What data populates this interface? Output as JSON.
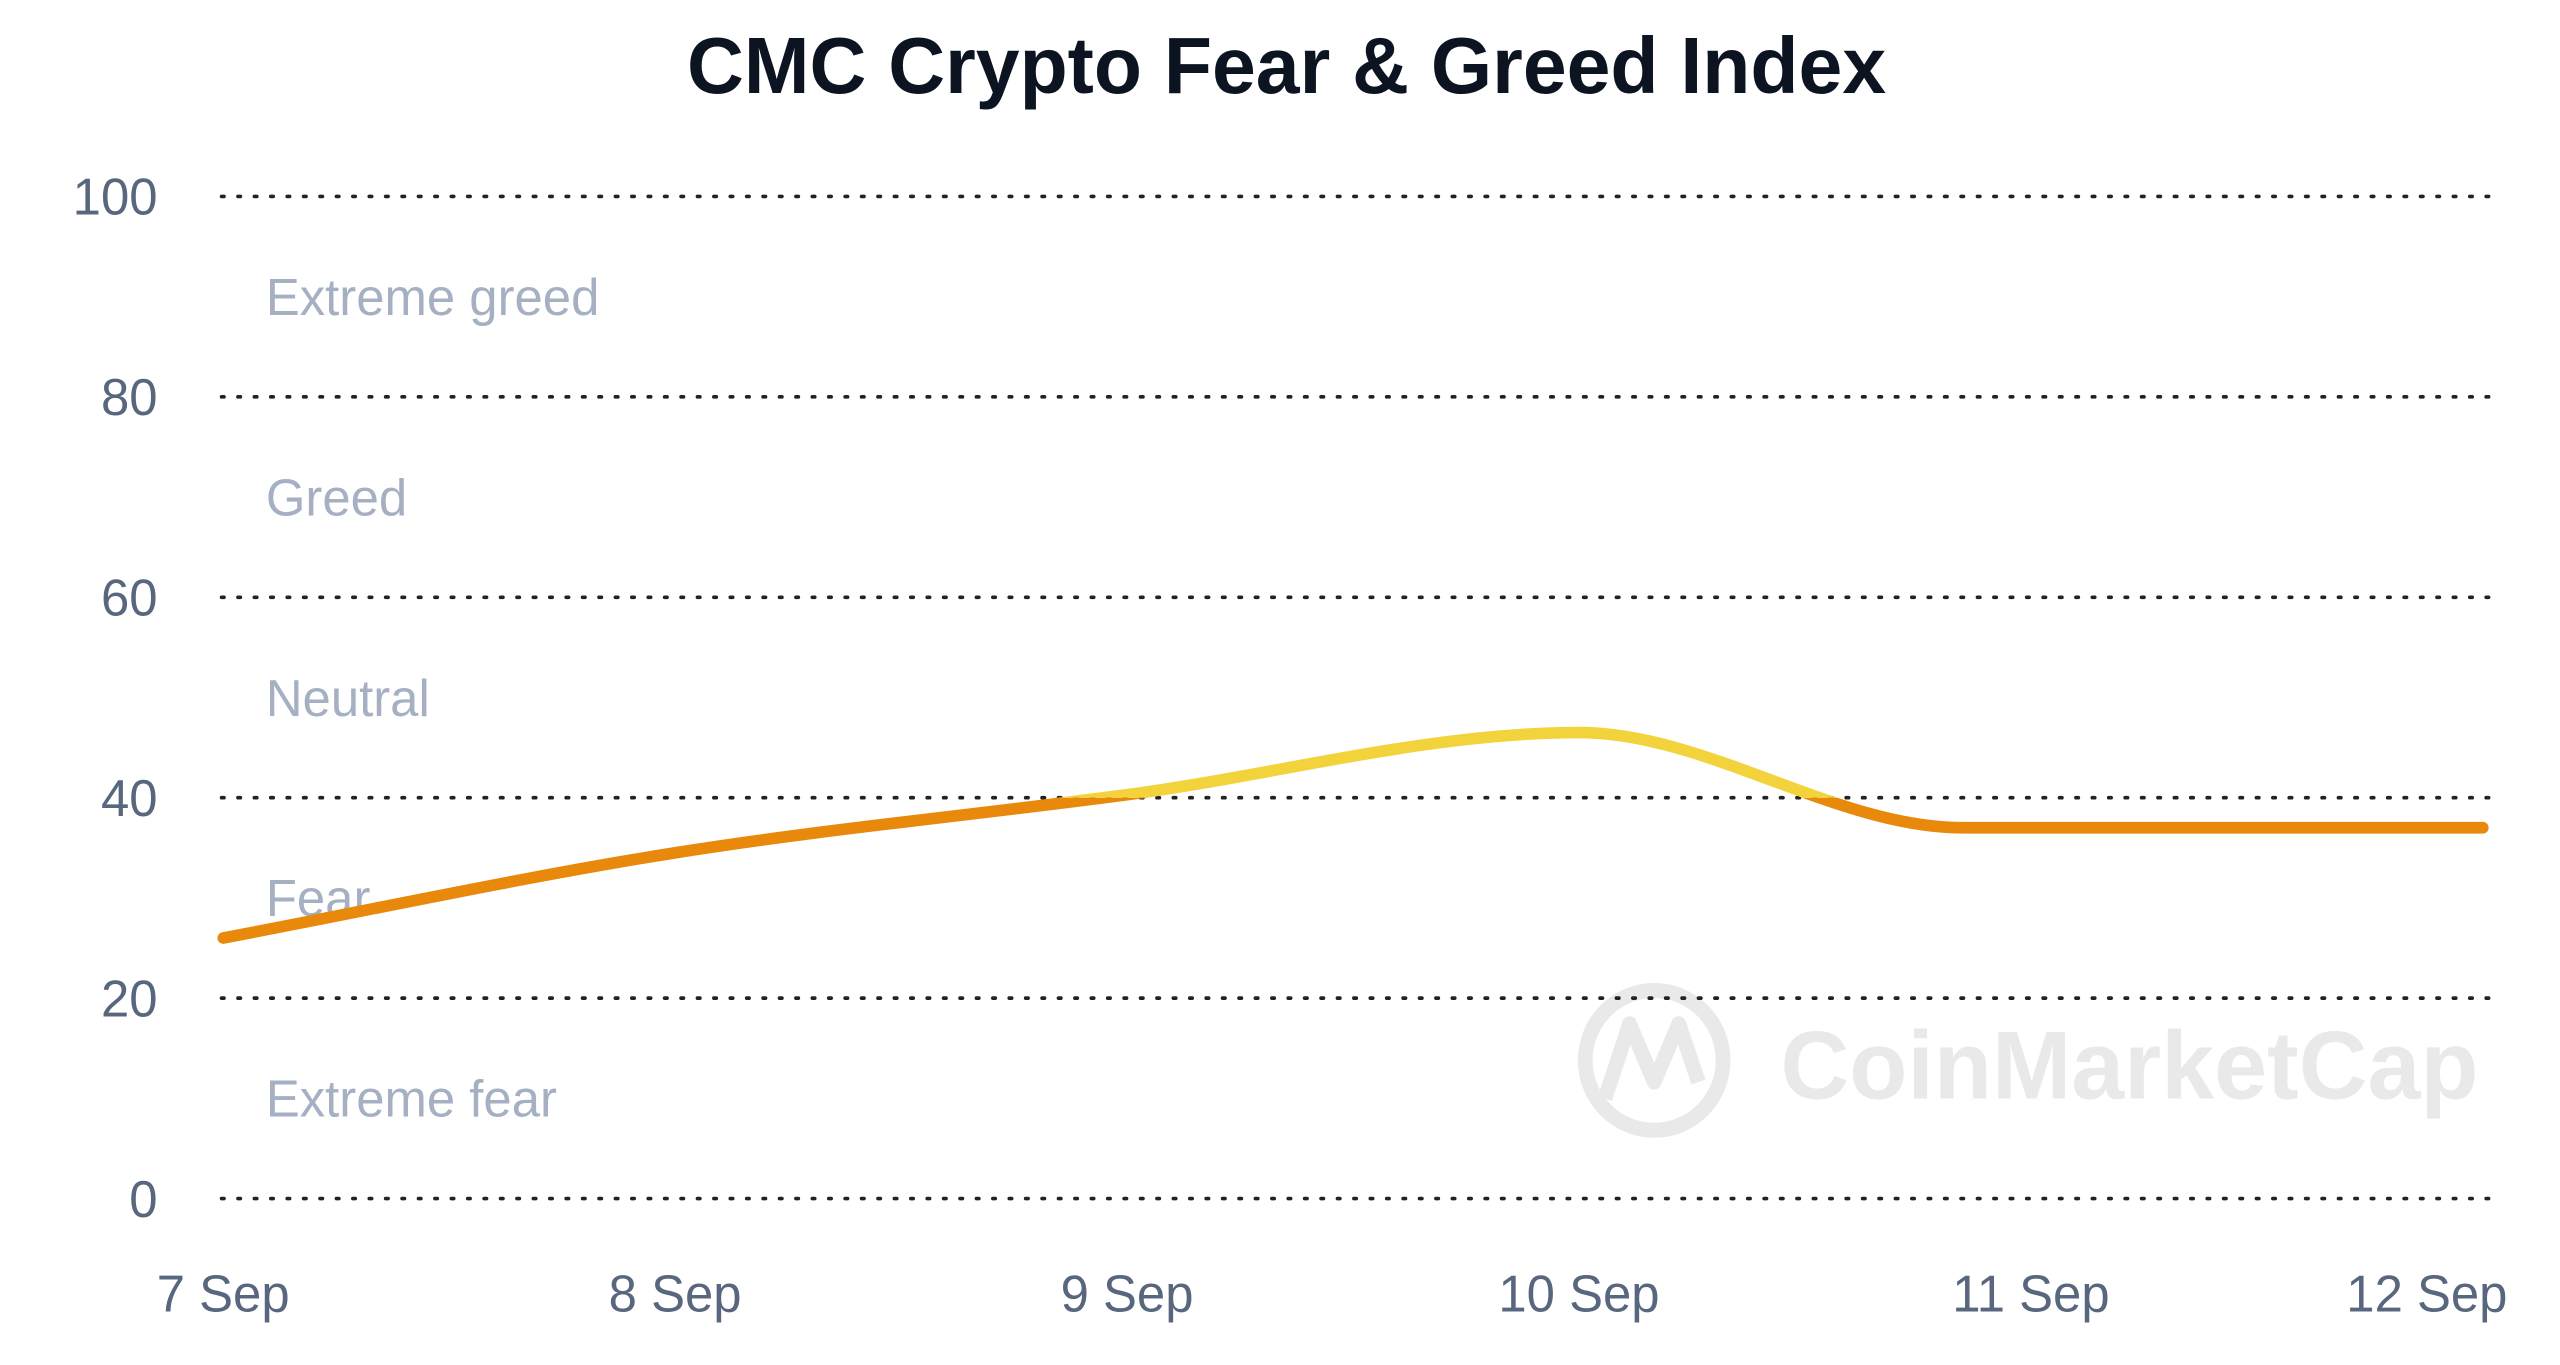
{
  "chart_data": {
    "type": "line",
    "title": "CMC Crypto Fear & Greed Index",
    "xlabel": "",
    "ylabel": "",
    "x": [
      "7 Sep",
      "8 Sep",
      "9 Sep",
      "10 Sep",
      "11 Sep",
      "12 Sep"
    ],
    "y_ticks": [
      "0",
      "20",
      "40",
      "60",
      "80",
      "100"
    ],
    "ylim": [
      0,
      100
    ],
    "grid": true,
    "zones": [
      {
        "label": "Extreme fear",
        "from": 0,
        "to": 20
      },
      {
        "label": "Fear",
        "from": 20,
        "to": 40
      },
      {
        "label": "Neutral",
        "from": 40,
        "to": 60
      },
      {
        "label": "Greed",
        "from": 60,
        "to": 80
      },
      {
        "label": "Extreme greed",
        "from": 80,
        "to": 100
      }
    ],
    "series": [
      {
        "name": "Fear & Greed Index",
        "points": [
          {
            "x": 0,
            "y": 26
          },
          {
            "x": 1,
            "y": 34.5
          },
          {
            "x": 2,
            "y": 40.3
          },
          {
            "x": 3,
            "y": 46.5
          },
          {
            "x": 3.85,
            "y": 37
          },
          {
            "x": 4,
            "y": 37
          },
          {
            "x": 5,
            "y": 37
          }
        ]
      }
    ],
    "colors": {
      "fear": "#e8890c",
      "neutral": "#f3d33b",
      "grid": "#222222"
    },
    "watermark": "CoinMarketCap"
  }
}
